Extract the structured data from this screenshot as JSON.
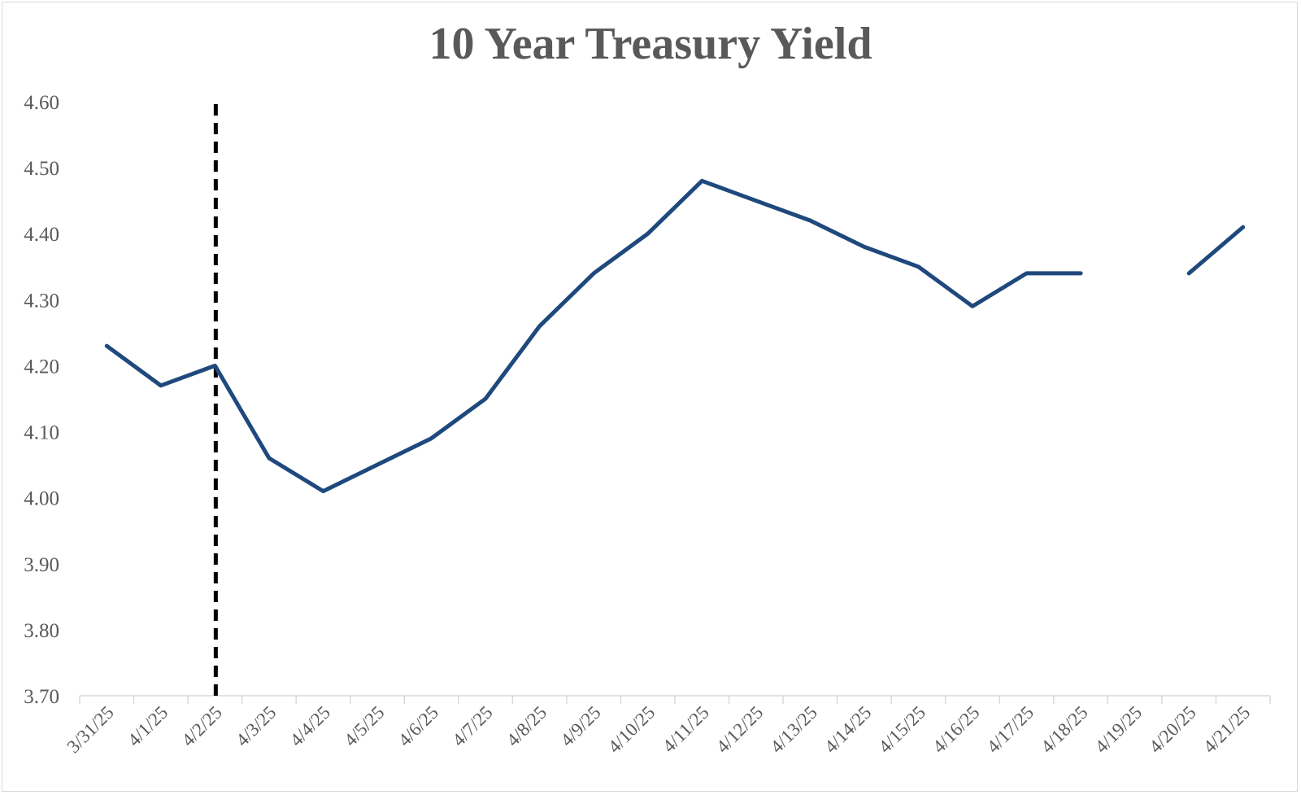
{
  "chart_data": {
    "type": "line",
    "title": "10 Year Treasury Yield",
    "xlabel": "",
    "ylabel": "",
    "ylim": [
      3.7,
      4.6
    ],
    "y_ticks": [
      "3.70",
      "3.80",
      "3.90",
      "4.00",
      "4.10",
      "4.20",
      "4.30",
      "4.40",
      "4.50",
      "4.60"
    ],
    "categories": [
      "3/31/25",
      "4/1/25",
      "4/2/25",
      "4/3/25",
      "4/4/25",
      "4/5/25",
      "4/6/25",
      "4/7/25",
      "4/8/25",
      "4/9/25",
      "4/10/25",
      "4/11/25",
      "4/12/25",
      "4/13/25",
      "4/14/25",
      "4/15/25",
      "4/16/25",
      "4/17/25",
      "4/18/25",
      "4/19/25",
      "4/20/25",
      "4/21/25"
    ],
    "series": [
      {
        "values": [
          4.23,
          4.17,
          4.2,
          4.06,
          4.01,
          4.05,
          4.09,
          4.15,
          4.26,
          4.34,
          4.4,
          4.48,
          4.45,
          4.42,
          4.38,
          4.35,
          4.29,
          4.34,
          4.34,
          null,
          4.34,
          4.41
        ],
        "color": "#1f497d"
      }
    ],
    "vertical_marker": {
      "category": "4/2/25",
      "style": "dashed",
      "color": "#000000"
    },
    "grid": false,
    "legend": "none"
  }
}
